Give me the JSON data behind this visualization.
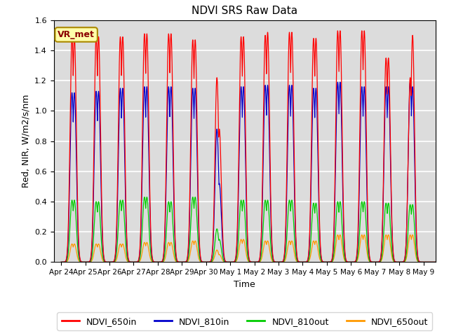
{
  "title": "NDVI SRS Raw Data",
  "xlabel": "Time",
  "ylabel": "Red, NIR, W/m2/s/nm",
  "ylim": [
    0.0,
    1.6
  ],
  "background_color": "#dcdcdc",
  "grid_color": "white",
  "legend_labels": [
    "NDVI_650in",
    "NDVI_810in",
    "NDVI_810out",
    "NDVI_650out"
  ],
  "legend_colors": [
    "#ff0000",
    "#0000cc",
    "#00cc00",
    "#ff9900"
  ],
  "annotation_text": "VR_met",
  "annotation_bg": "#ffffaa",
  "annotation_border": "#aa8800",
  "xtick_labels": [
    "Apr 24",
    "Apr 25",
    "Apr 26",
    "Apr 27",
    "Apr 28",
    "Apr 29",
    "Apr 30",
    "May 1",
    "May 2",
    "May 3",
    "May 4",
    "May 5",
    "May 6",
    "May 7",
    "May 8",
    "May 9"
  ],
  "xtick_positions": [
    0,
    1,
    2,
    3,
    4,
    5,
    6,
    7,
    8,
    9,
    10,
    11,
    12,
    13,
    14,
    15
  ],
  "series": {
    "NDVI_650in": {
      "color": "#ff0000",
      "peak_times": [
        0.45,
        0.55,
        1.45,
        1.55,
        2.45,
        2.55,
        3.45,
        3.55,
        4.45,
        4.55,
        5.45,
        5.55,
        6.45,
        6.55,
        7.45,
        7.55,
        8.45,
        8.55,
        9.45,
        9.55,
        10.45,
        10.55,
        11.45,
        11.55,
        12.45,
        12.55,
        13.45,
        13.55,
        14.45,
        14.55
      ],
      "peak_values": [
        1.49,
        1.49,
        1.49,
        1.49,
        1.49,
        1.49,
        1.51,
        1.51,
        1.51,
        1.51,
        1.47,
        1.47,
        1.22,
        0.88,
        1.49,
        1.49,
        1.5,
        1.52,
        1.52,
        1.52,
        1.48,
        1.48,
        1.53,
        1.53,
        1.53,
        1.53,
        1.35,
        1.35,
        1.22,
        1.5
      ]
    },
    "NDVI_810in": {
      "color": "#0000cc",
      "peak_times": [
        0.45,
        0.55,
        1.45,
        1.55,
        2.45,
        2.55,
        3.45,
        3.55,
        4.45,
        4.55,
        5.45,
        5.55,
        6.45,
        6.55,
        7.45,
        7.55,
        8.45,
        8.55,
        9.45,
        9.55,
        10.45,
        10.55,
        11.45,
        11.55,
        12.45,
        12.55,
        13.45,
        13.55,
        14.45,
        14.55
      ],
      "peak_values": [
        1.12,
        1.12,
        1.13,
        1.13,
        1.15,
        1.15,
        1.16,
        1.16,
        1.16,
        1.16,
        1.15,
        1.15,
        0.88,
        0.52,
        1.16,
        1.16,
        1.17,
        1.17,
        1.17,
        1.17,
        1.15,
        1.15,
        1.19,
        1.19,
        1.16,
        1.16,
        1.16,
        1.16,
        1.19,
        1.16
      ]
    },
    "NDVI_810out": {
      "color": "#00cc00",
      "peak_times": [
        0.45,
        0.55,
        1.45,
        1.55,
        2.45,
        2.55,
        3.45,
        3.55,
        4.45,
        4.55,
        5.45,
        5.55,
        6.45,
        6.55,
        7.45,
        7.55,
        8.45,
        8.55,
        9.45,
        9.55,
        10.45,
        10.55,
        11.45,
        11.55,
        12.45,
        12.55,
        13.45,
        13.55,
        14.45,
        14.55
      ],
      "peak_values": [
        0.41,
        0.41,
        0.4,
        0.4,
        0.41,
        0.41,
        0.43,
        0.43,
        0.4,
        0.4,
        0.43,
        0.43,
        0.22,
        0.15,
        0.41,
        0.41,
        0.41,
        0.41,
        0.41,
        0.41,
        0.39,
        0.39,
        0.4,
        0.4,
        0.4,
        0.4,
        0.39,
        0.39,
        0.38,
        0.38
      ]
    },
    "NDVI_650out": {
      "color": "#ff9900",
      "peak_times": [
        0.45,
        0.55,
        1.45,
        1.55,
        2.45,
        2.55,
        3.45,
        3.55,
        4.45,
        4.55,
        5.45,
        5.55,
        6.45,
        6.55,
        7.45,
        7.55,
        8.45,
        8.55,
        9.45,
        9.55,
        10.45,
        10.55,
        11.45,
        11.55,
        12.45,
        12.55,
        13.45,
        13.55,
        14.45,
        14.55
      ],
      "peak_values": [
        0.12,
        0.12,
        0.12,
        0.12,
        0.12,
        0.12,
        0.13,
        0.13,
        0.13,
        0.13,
        0.14,
        0.14,
        0.08,
        0.05,
        0.15,
        0.15,
        0.14,
        0.14,
        0.14,
        0.14,
        0.14,
        0.14,
        0.18,
        0.18,
        0.18,
        0.18,
        0.18,
        0.18,
        0.18,
        0.18
      ]
    }
  }
}
